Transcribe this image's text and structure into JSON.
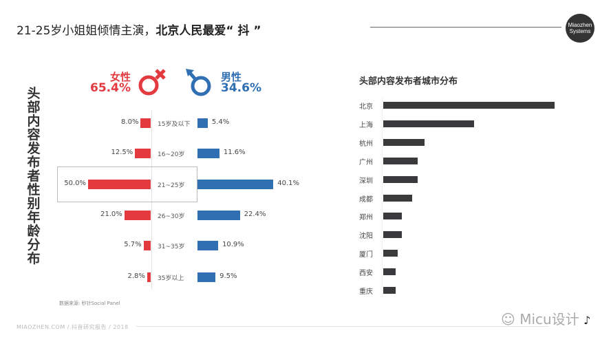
{
  "header": {
    "title_normal": "21-25岁小姐姐倾情主演，",
    "title_bold": "北京人民最爱“ 抖 ”",
    "logo_text": "Miaozhen Systems"
  },
  "left": {
    "vertical_title": "头部内容发布者性别年龄分布",
    "female": {
      "label": "女性",
      "pct": "65.4%",
      "color": "#e33a3f",
      "icon": "female-symbol-icon"
    },
    "male": {
      "label": "男性",
      "pct": "34.6%",
      "color": "#2f6fb2",
      "icon": "male-symbol-icon"
    },
    "source": "数据来源: 秒针Social Panel",
    "highlight": "21~25岁"
  },
  "chart_data": [
    {
      "type": "bar",
      "orientation": "horizontal-butterfly",
      "categories": [
        "15岁及以下",
        "16~20岁",
        "21~25岁",
        "26~30岁",
        "31~35岁",
        "35岁以上"
      ],
      "series": [
        {
          "name": "女性",
          "values": [
            8.0,
            12.5,
            50.0,
            21.0,
            5.7,
            2.8
          ],
          "labels": [
            "8.0%",
            "12.5%",
            "50.0%",
            "21.0%",
            "5.7%",
            "2.8%"
          ],
          "color": "#e33a3f"
        },
        {
          "name": "男性",
          "values": [
            5.4,
            11.6,
            40.1,
            22.4,
            10.9,
            9.5
          ],
          "labels": [
            "5.4%",
            "11.6%",
            "40.1%",
            "22.4%",
            "10.9%",
            "9.5%"
          ],
          "color": "#2f6fb2"
        }
      ]
    },
    {
      "type": "bar",
      "orientation": "horizontal",
      "title": "头部内容发布者城市分布",
      "categories": [
        "北京",
        "上海",
        "杭州",
        "广州",
        "深圳",
        "成都",
        "郑州",
        "沈阳",
        "厦门",
        "西安",
        "重庆"
      ],
      "values": [
        100,
        53,
        24,
        20,
        20,
        17,
        11,
        11,
        8.5,
        7.2,
        7.2
      ],
      "color": "#3a3a3c"
    }
  ],
  "footer": {
    "text": "MIAOZHEN.COM / 抖音研究报告 / 2018",
    "watermark": "Micu设计"
  }
}
